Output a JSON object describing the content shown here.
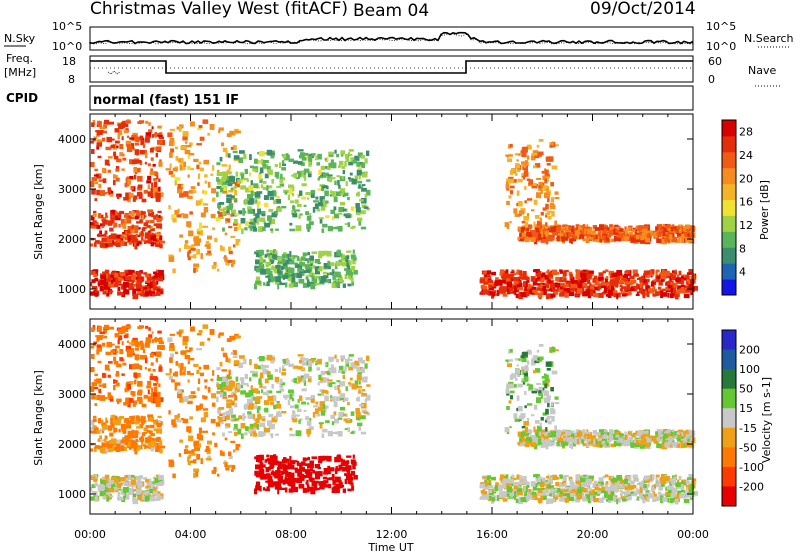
{
  "header": {
    "station": "Christmas Valley West (fitACF)",
    "beam": "Beam 04",
    "date": "09/Oct/2014"
  },
  "noise_panel": {
    "left_label": "N.Sky",
    "right_label": "N.Search",
    "left_ticks": [
      "10^5",
      "10^0"
    ],
    "right_ticks": [
      "10^5",
      "10^0"
    ]
  },
  "freq_panel": {
    "left_label_line1": "Freq.",
    "left_label_line2": "[MHz]",
    "right_label": "Nave",
    "left_ticks": [
      "18",
      "8"
    ],
    "right_ticks": [
      "60",
      "0"
    ]
  },
  "cpid_panel": {
    "label": "CPID",
    "text": "normal (fast) 151 IF"
  },
  "colors": {
    "power_scale": [
      "#1414e6",
      "#1e64b4",
      "#3c8c6e",
      "#5ab45a",
      "#a0d246",
      "#f0e132",
      "#f5b428",
      "#f58c1e",
      "#f05a14",
      "#e62d0a",
      "#d70000"
    ],
    "velocity_scale": [
      "#2828c8",
      "#1e5aa0",
      "#28783c",
      "#64c832",
      "#c8c8c8",
      "#f0a014",
      "#ff7800",
      "#ff3c00",
      "#e60000"
    ]
  },
  "chart_data": [
    {
      "type": "heatmap",
      "title": "Power",
      "ylabel": "Slant Range [km]",
      "xlabel": "Time UT",
      "x_ticks": [
        "00:00",
        "04:00",
        "08:00",
        "12:00",
        "16:00",
        "20:00",
        "00:00"
      ],
      "y_ticks": [
        1000,
        2000,
        3000,
        4000
      ],
      "ylim": [
        600,
        4500
      ],
      "xlim_hours": [
        0,
        24
      ],
      "colorbar": {
        "label": "Power [dB]",
        "ticks": [
          4,
          8,
          12,
          16,
          20,
          24,
          28
        ],
        "range": [
          0,
          30
        ]
      },
      "echo_regions": [
        {
          "t": [
            0.0,
            2.8
          ],
          "range_km": [
            900,
            1400
          ],
          "level_db": 28
        },
        {
          "t": [
            0.0,
            2.8
          ],
          "range_km": [
            1900,
            2600
          ],
          "level_db": 26
        },
        {
          "t": [
            0.0,
            2.8
          ],
          "range_km": [
            2800,
            4400
          ],
          "level_db": 25
        },
        {
          "t": [
            3.0,
            5.8
          ],
          "range_km": [
            1400,
            4400
          ],
          "level_db": 20
        },
        {
          "t": [
            5.0,
            11.0
          ],
          "range_km": [
            2200,
            3800
          ],
          "level_db": 10
        },
        {
          "t": [
            6.5,
            10.5
          ],
          "range_km": [
            1100,
            1800
          ],
          "level_db": 9
        },
        {
          "t": [
            15.5,
            24.0
          ],
          "range_km": [
            900,
            1400
          ],
          "level_db": 27
        },
        {
          "t": [
            17.0,
            24.0
          ],
          "range_km": [
            2000,
            2300
          ],
          "level_db": 24
        },
        {
          "t": [
            16.5,
            18.5
          ],
          "range_km": [
            2300,
            4000
          ],
          "level_db": 21
        }
      ]
    },
    {
      "type": "heatmap",
      "title": "Velocity",
      "ylabel": "Slant Range [km]",
      "xlabel": "Time UT",
      "x_ticks": [
        "00:00",
        "04:00",
        "08:00",
        "12:00",
        "16:00",
        "20:00",
        "00:00"
      ],
      "y_ticks": [
        1000,
        2000,
        3000,
        4000
      ],
      "ylim": [
        600,
        4500
      ],
      "xlim_hours": [
        0,
        24
      ],
      "colorbar": {
        "label": "Velocity [m s-1]",
        "ticks": [
          200,
          100,
          50,
          15,
          -15,
          -50,
          -100,
          -200
        ],
        "range": [
          -250,
          250
        ]
      },
      "echo_regions": [
        {
          "t": [
            0.0,
            2.8
          ],
          "range_km": [
            900,
            1400
          ],
          "velocity": 0
        },
        {
          "t": [
            0.0,
            2.8
          ],
          "range_km": [
            1900,
            2600
          ],
          "velocity": -40
        },
        {
          "t": [
            0.0,
            2.8
          ],
          "range_km": [
            2800,
            4400
          ],
          "velocity": -60
        },
        {
          "t": [
            3.0,
            5.8
          ],
          "range_km": [
            1400,
            4400
          ],
          "velocity": -40
        },
        {
          "t": [
            5.0,
            11.0
          ],
          "range_km": [
            2200,
            3800
          ],
          "velocity": 0
        },
        {
          "t": [
            6.5,
            10.5
          ],
          "range_km": [
            1100,
            1800
          ],
          "velocity": -220
        },
        {
          "t": [
            15.5,
            24.0
          ],
          "range_km": [
            900,
            1400
          ],
          "velocity": 0
        },
        {
          "t": [
            17.0,
            24.0
          ],
          "range_km": [
            2000,
            2300
          ],
          "velocity": 0
        },
        {
          "t": [
            16.5,
            18.5
          ],
          "range_km": [
            2300,
            4000
          ],
          "velocity": 10
        }
      ]
    }
  ]
}
